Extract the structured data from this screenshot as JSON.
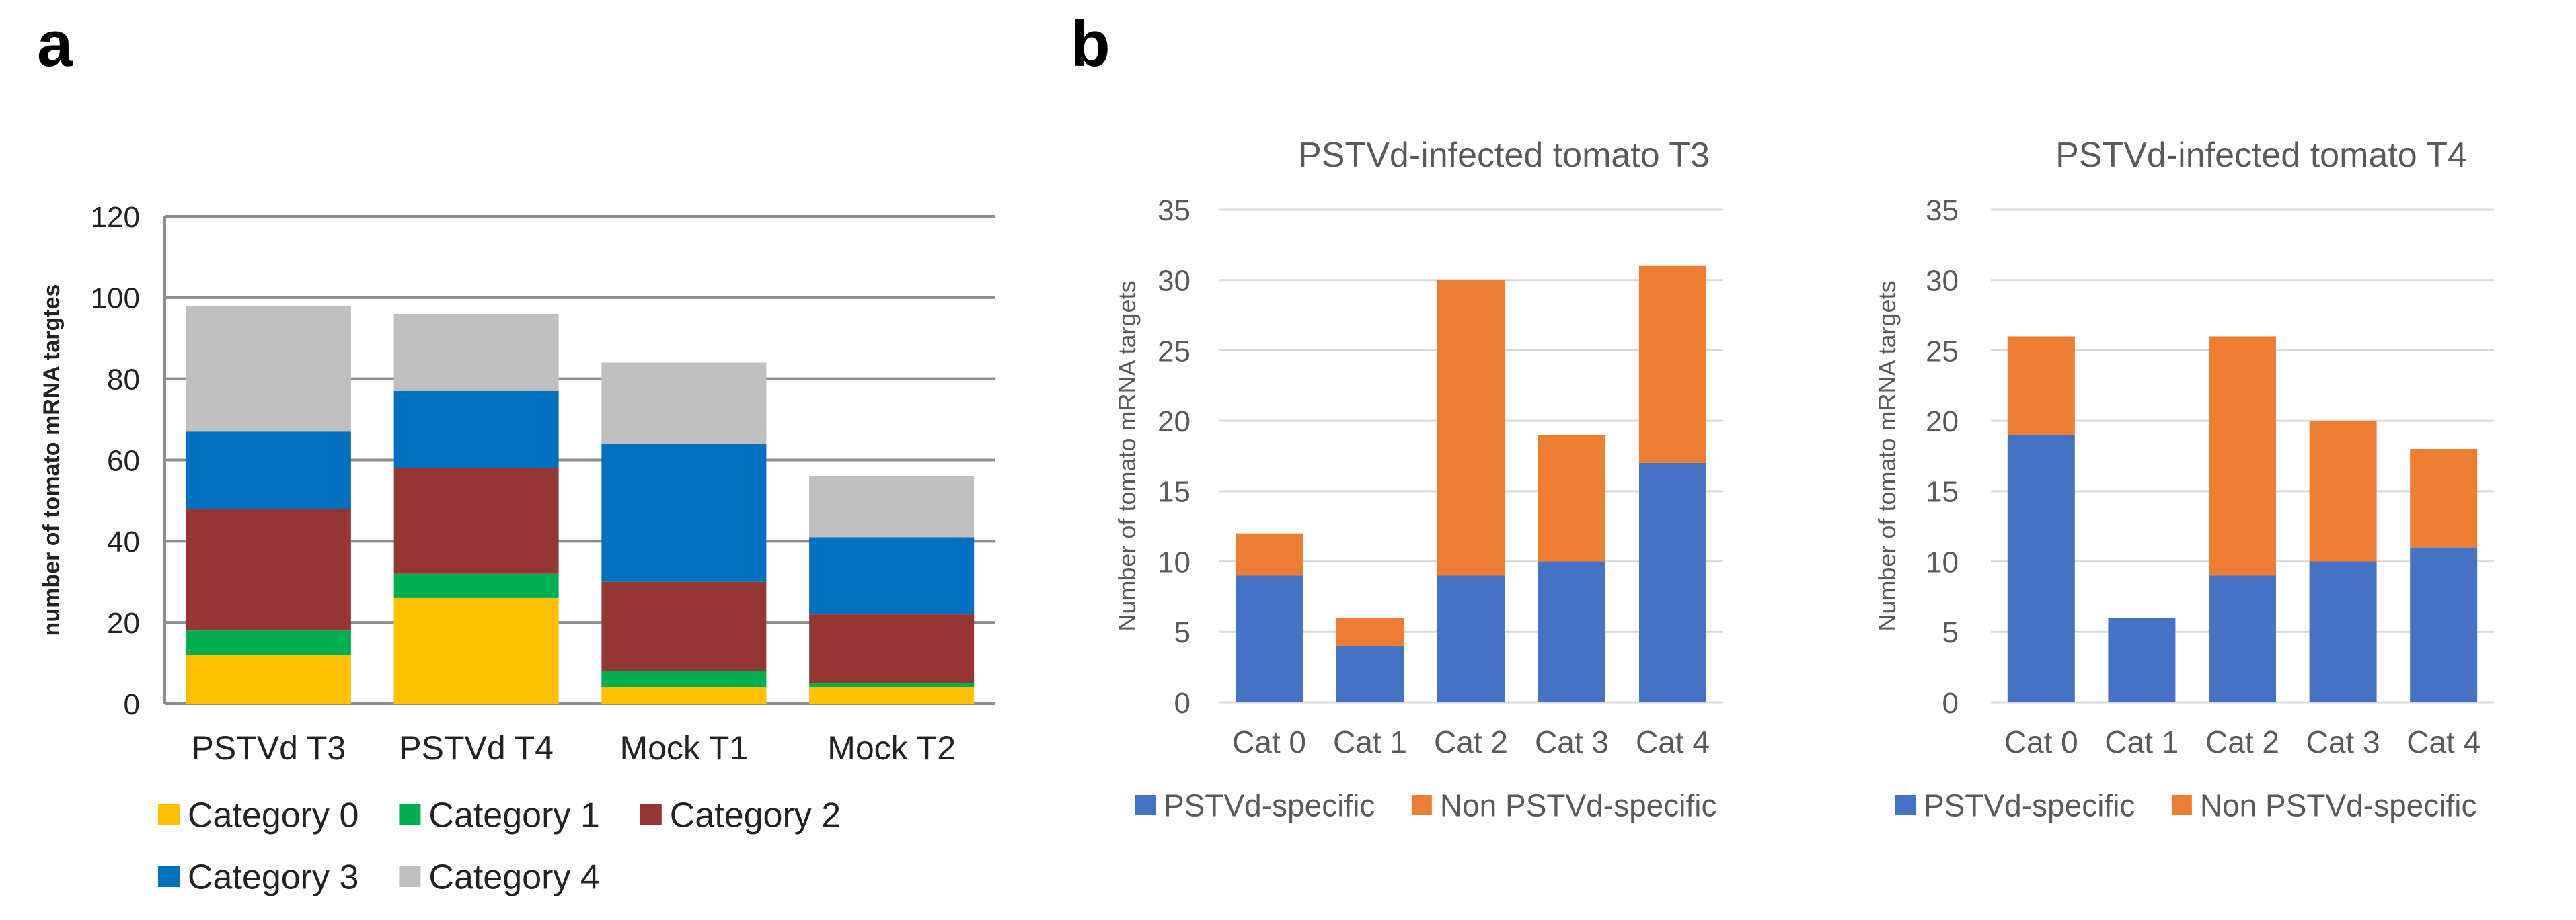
{
  "panels": {
    "a": "a",
    "b": "b"
  },
  "chart_data": [
    {
      "id": "a",
      "type": "bar",
      "stacked": true,
      "title": "",
      "xlabel": "",
      "ylabel": "number of tomato mRNA targtes",
      "ylim": [
        0,
        120
      ],
      "yticks": [
        0,
        20,
        40,
        60,
        80,
        100,
        120
      ],
      "categories": [
        "PSTVd T3",
        "PSTVd T4",
        "Mock T1",
        "Mock T2"
      ],
      "series": [
        {
          "name": "Category 0",
          "color": "#FFC000",
          "values": [
            12,
            26,
            4,
            4
          ]
        },
        {
          "name": "Category 1",
          "color": "#00B050",
          "values": [
            6,
            6,
            4,
            1
          ]
        },
        {
          "name": "Category 2",
          "color": "#963634",
          "values": [
            30,
            26,
            22,
            17
          ]
        },
        {
          "name": "Category 3",
          "color": "#0070C0",
          "values": [
            19,
            19,
            34,
            19
          ]
        },
        {
          "name": "Category 4",
          "color": "#BFBFBF",
          "values": [
            31,
            19,
            20,
            15
          ]
        }
      ],
      "grid": true,
      "legend": "bottom"
    },
    {
      "id": "b1",
      "type": "bar",
      "stacked": true,
      "title": "PSTVd-infected tomato T3",
      "xlabel": "",
      "ylabel": "Number of tomato mRNA targets",
      "ylim": [
        0,
        35
      ],
      "yticks": [
        0,
        5,
        10,
        15,
        20,
        25,
        30,
        35
      ],
      "categories": [
        "Cat 0",
        "Cat 1",
        "Cat 2",
        "Cat 3",
        "Cat 4"
      ],
      "series": [
        {
          "name": "PSTVd-specific",
          "color": "#4472C4",
          "values": [
            9,
            4,
            9,
            10,
            17
          ]
        },
        {
          "name": "Non PSTVd-specific",
          "color": "#ED7D31",
          "values": [
            3,
            2,
            21,
            9,
            14
          ]
        }
      ],
      "grid": true,
      "legend": "bottom"
    },
    {
      "id": "b2",
      "type": "bar",
      "stacked": true,
      "title": "PSTVd-infected tomato T4",
      "xlabel": "",
      "ylabel": "Number of tomato mRNA targets",
      "ylim": [
        0,
        35
      ],
      "yticks": [
        0,
        5,
        10,
        15,
        20,
        25,
        30,
        35
      ],
      "categories": [
        "Cat 0",
        "Cat 1",
        "Cat 2",
        "Cat 3",
        "Cat 4"
      ],
      "series": [
        {
          "name": "PSTVd-specific",
          "color": "#4472C4",
          "values": [
            19,
            6,
            9,
            10,
            11
          ]
        },
        {
          "name": "Non PSTVd-specific",
          "color": "#ED7D31",
          "values": [
            7,
            0,
            17,
            10,
            7
          ]
        }
      ],
      "grid": true,
      "legend": "bottom"
    }
  ]
}
